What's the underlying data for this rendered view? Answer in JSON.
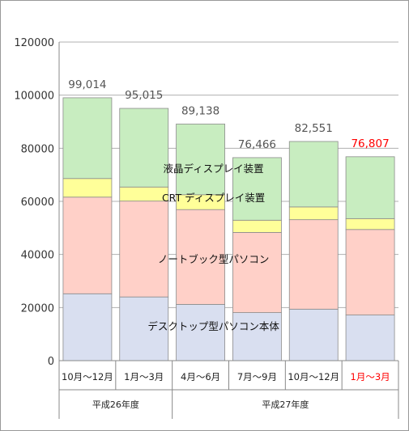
{
  "chart_data": {
    "type": "bar",
    "stacked": true,
    "categories": [
      "10月～12月",
      "1月～3月",
      "4月～6月",
      "7月～9月",
      "10月～12月",
      "1月～3月"
    ],
    "groups": [
      {
        "label": "平成26年度",
        "categories": [
          0,
          1
        ]
      },
      {
        "label": "平成27年度",
        "categories": [
          2,
          3,
          4,
          5
        ]
      }
    ],
    "highlight_index": 5,
    "highlight_color": "#ff0000",
    "series": [
      {
        "name": "デスクトップ型パソコン本体",
        "color": "#d9dff0",
        "values": [
          25200,
          24000,
          21200,
          18100,
          19400,
          17200
        ]
      },
      {
        "name": "ノートブック型パソコン",
        "color": "#ffd0c8",
        "values": [
          36400,
          36100,
          35700,
          30200,
          33700,
          32200
        ]
      },
      {
        "name": "CRT ディスプレイ装置",
        "color": "#ffff99",
        "values": [
          7000,
          5300,
          5600,
          4600,
          4800,
          4100
        ]
      },
      {
        "name": "液晶ディスプレイ装置",
        "color": "#c8edc0",
        "values": [
          30414,
          29615,
          26638,
          23566,
          24651,
          23307
        ]
      }
    ],
    "totals": [
      "99,014",
      "95,015",
      "89,138",
      "76,466",
      "82,551",
      "76,807"
    ],
    "yticks": [
      "120000",
      "100000",
      "80000",
      "60000",
      "40000",
      "20000",
      "0"
    ],
    "ylim": [
      0,
      120000
    ],
    "grid": true,
    "legend": "inline labels on 3rd bar"
  }
}
